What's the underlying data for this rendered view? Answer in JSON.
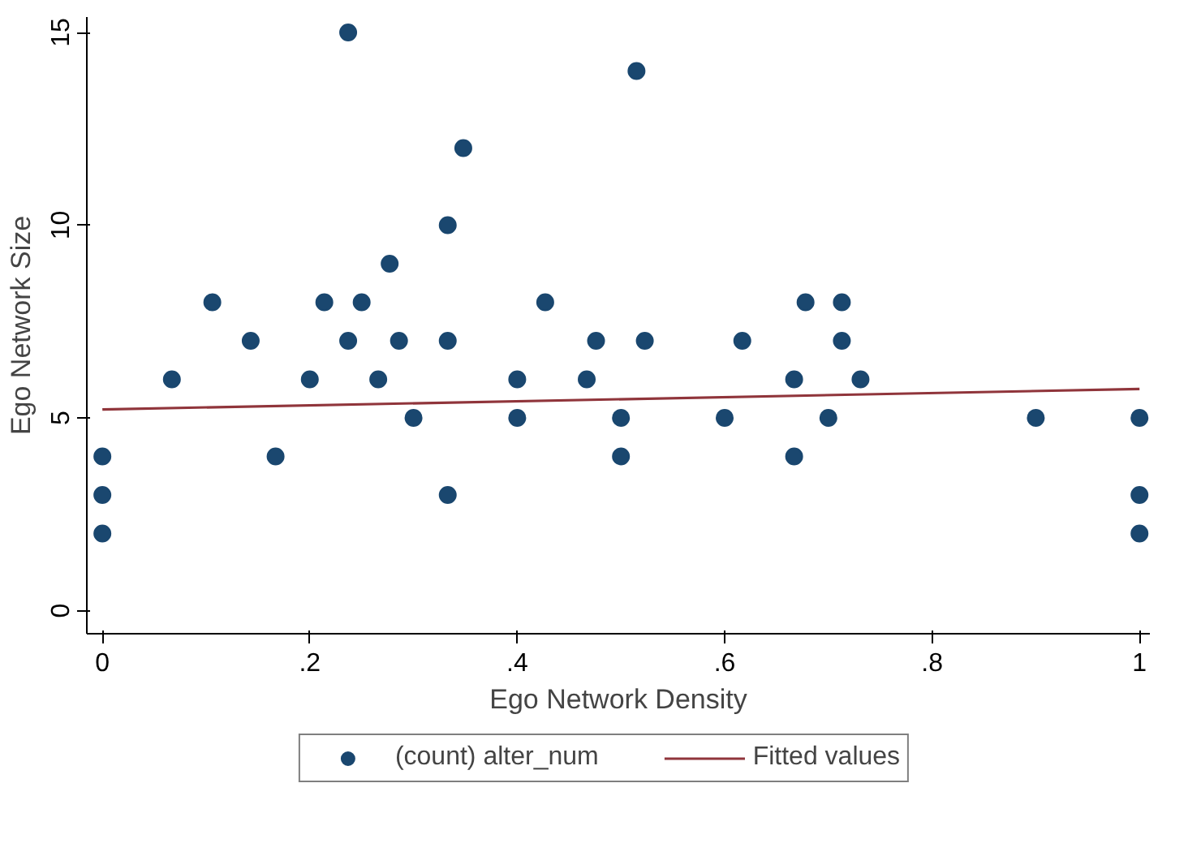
{
  "chart_data": {
    "type": "scatter",
    "xlabel": "Ego Network Density",
    "ylabel": "Ego Network Size",
    "xlim": [
      -0.015,
      1.01
    ],
    "ylim": [
      -0.6,
      15.4
    ],
    "xticks": [
      0,
      {
        "value": 0.2,
        "label": ".2"
      },
      {
        "value": 0.4,
        "label": ".4"
      },
      {
        "value": 0.6,
        "label": ".6"
      },
      {
        "value": 0.8,
        "label": ".8"
      },
      1
    ],
    "yticks": [
      0,
      5,
      10,
      15
    ],
    "grid": false,
    "legend": "bottom",
    "series": [
      {
        "name": "(count) alter_num",
        "type": "scatter",
        "marker": "circle",
        "color": "#1a476f",
        "x": [
          0,
          0,
          0,
          0.067,
          0.106,
          0.143,
          0.167,
          0.2,
          0.214,
          0.237,
          0.237,
          0.25,
          0.266,
          0.277,
          0.286,
          0.3,
          0.333,
          0.333,
          0.333,
          0.348,
          0.4,
          0.4,
          0.427,
          0.467,
          0.476,
          0.5,
          0.5,
          0.515,
          0.523,
          0.6,
          0.617,
          0.667,
          0.667,
          0.678,
          0.7,
          0.713,
          0.713,
          0.731,
          0.9,
          1,
          1,
          1
        ],
        "values": [
          4,
          3,
          2,
          6,
          8,
          7,
          4,
          6,
          8,
          15,
          7,
          8,
          6,
          9,
          7,
          5,
          10,
          7,
          3,
          12,
          6,
          5,
          8,
          6,
          7,
          5,
          4,
          14,
          7,
          5,
          7,
          6,
          4,
          8,
          5,
          8,
          7,
          6,
          5,
          5,
          3,
          2
        ]
      },
      {
        "name": "Fitted values",
        "type": "line",
        "color": "#90353b",
        "line_style": "solid",
        "x": [
          0,
          1
        ],
        "values": [
          5.22,
          5.75
        ]
      }
    ]
  }
}
